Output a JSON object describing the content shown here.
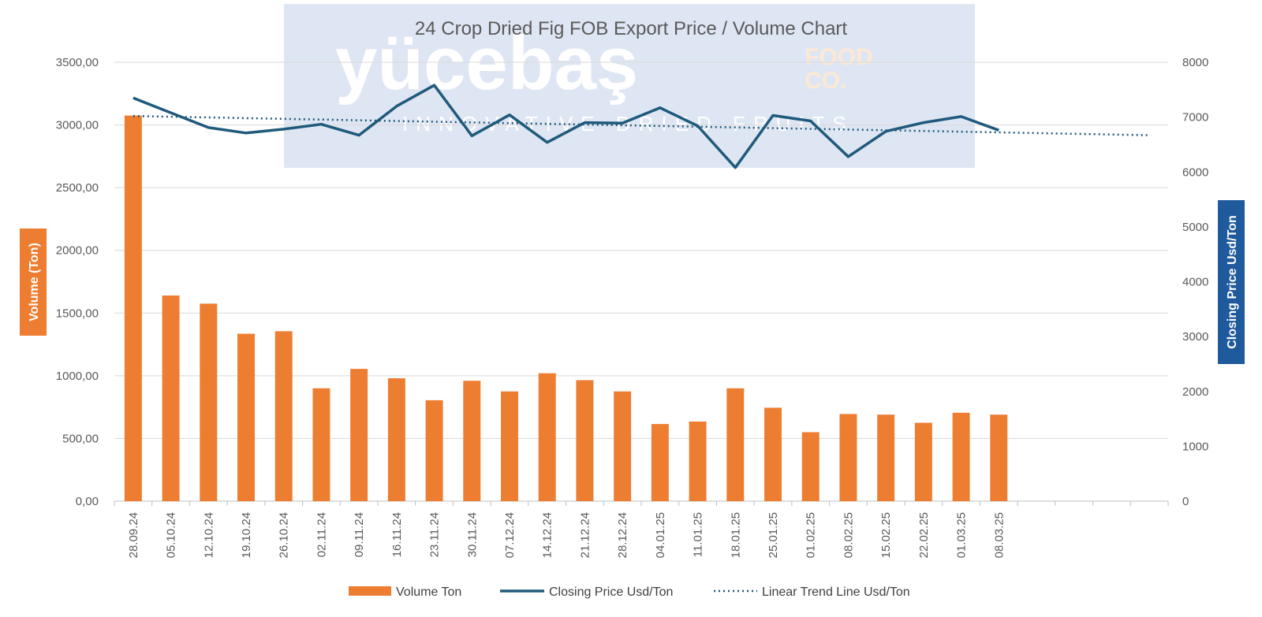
{
  "watermark": {
    "brand": "yücebaş",
    "brand_suffix_1": "FOOD",
    "brand_suffix_2": "CO.",
    "tagline": "INNOVATIVE DRIED FRUITS",
    "panel_color": "#dfe6f3",
    "brand_color": "#ffffff",
    "suffix_color": "#fbe9d6"
  },
  "chart_data": {
    "type": "bar",
    "title": "24 Crop Dried Fig  FOB Export Price / Volume Chart",
    "ylabel": "Volume (Ton)",
    "y2label": "Closing Price Usd/Ton",
    "ylim": [
      0,
      3500
    ],
    "y2lim": [
      0,
      8000
    ],
    "y_ticks": [
      "0,00",
      "500,00",
      "1000,00",
      "1500,00",
      "2000,00",
      "2500,00",
      "3000,00",
      "3500,00"
    ],
    "y2_ticks": [
      "0",
      "1000",
      "2000",
      "3000",
      "4000",
      "5000",
      "6000",
      "7000",
      "8000"
    ],
    "grid": true,
    "legend_position": "bottom",
    "total_category_slots": 28,
    "categories": [
      "28.09.24",
      "05.10.24",
      "12.10.24",
      "19.10.24",
      "26.10.24",
      "02.11.24",
      "09.11.24",
      "16.11.24",
      "23.11.24",
      "30.11.24",
      "07.12.24",
      "14.12.24",
      "21.12.24",
      "28.12.24",
      "04.01.25",
      "11.01.25",
      "18.01.25",
      "25.01.25",
      "01.02.25",
      "08.02.25",
      "15.02.25",
      "22.02.25",
      "01.03.25",
      "08.03.25"
    ],
    "series": [
      {
        "name": "Volume Ton",
        "type": "bar",
        "axis": "left",
        "color": "#ed7d31",
        "values": [
          3075,
          1640,
          1575,
          1335,
          1355,
          900,
          1055,
          980,
          805,
          960,
          875,
          1020,
          965,
          875,
          615,
          635,
          900,
          745,
          550,
          695,
          690,
          625,
          705,
          690
        ]
      },
      {
        "name": "Closing Price Usd/Ton",
        "type": "line",
        "axis": "right",
        "color": "#1f5a7c",
        "values": [
          7350,
          7080,
          6810,
          6710,
          6780,
          6870,
          6670,
          7200,
          7580,
          6660,
          7040,
          6540,
          6900,
          6890,
          7170,
          6840,
          6080,
          7030,
          6930,
          6280,
          6740,
          6900,
          7010,
          6760
        ]
      },
      {
        "name": "Linear Trend Line Usd/Ton",
        "type": "trendline",
        "axis": "right",
        "color": "#1f5a7c",
        "start_value": 7020,
        "end_value": 6670,
        "extends_to_slot": 28
      }
    ]
  }
}
